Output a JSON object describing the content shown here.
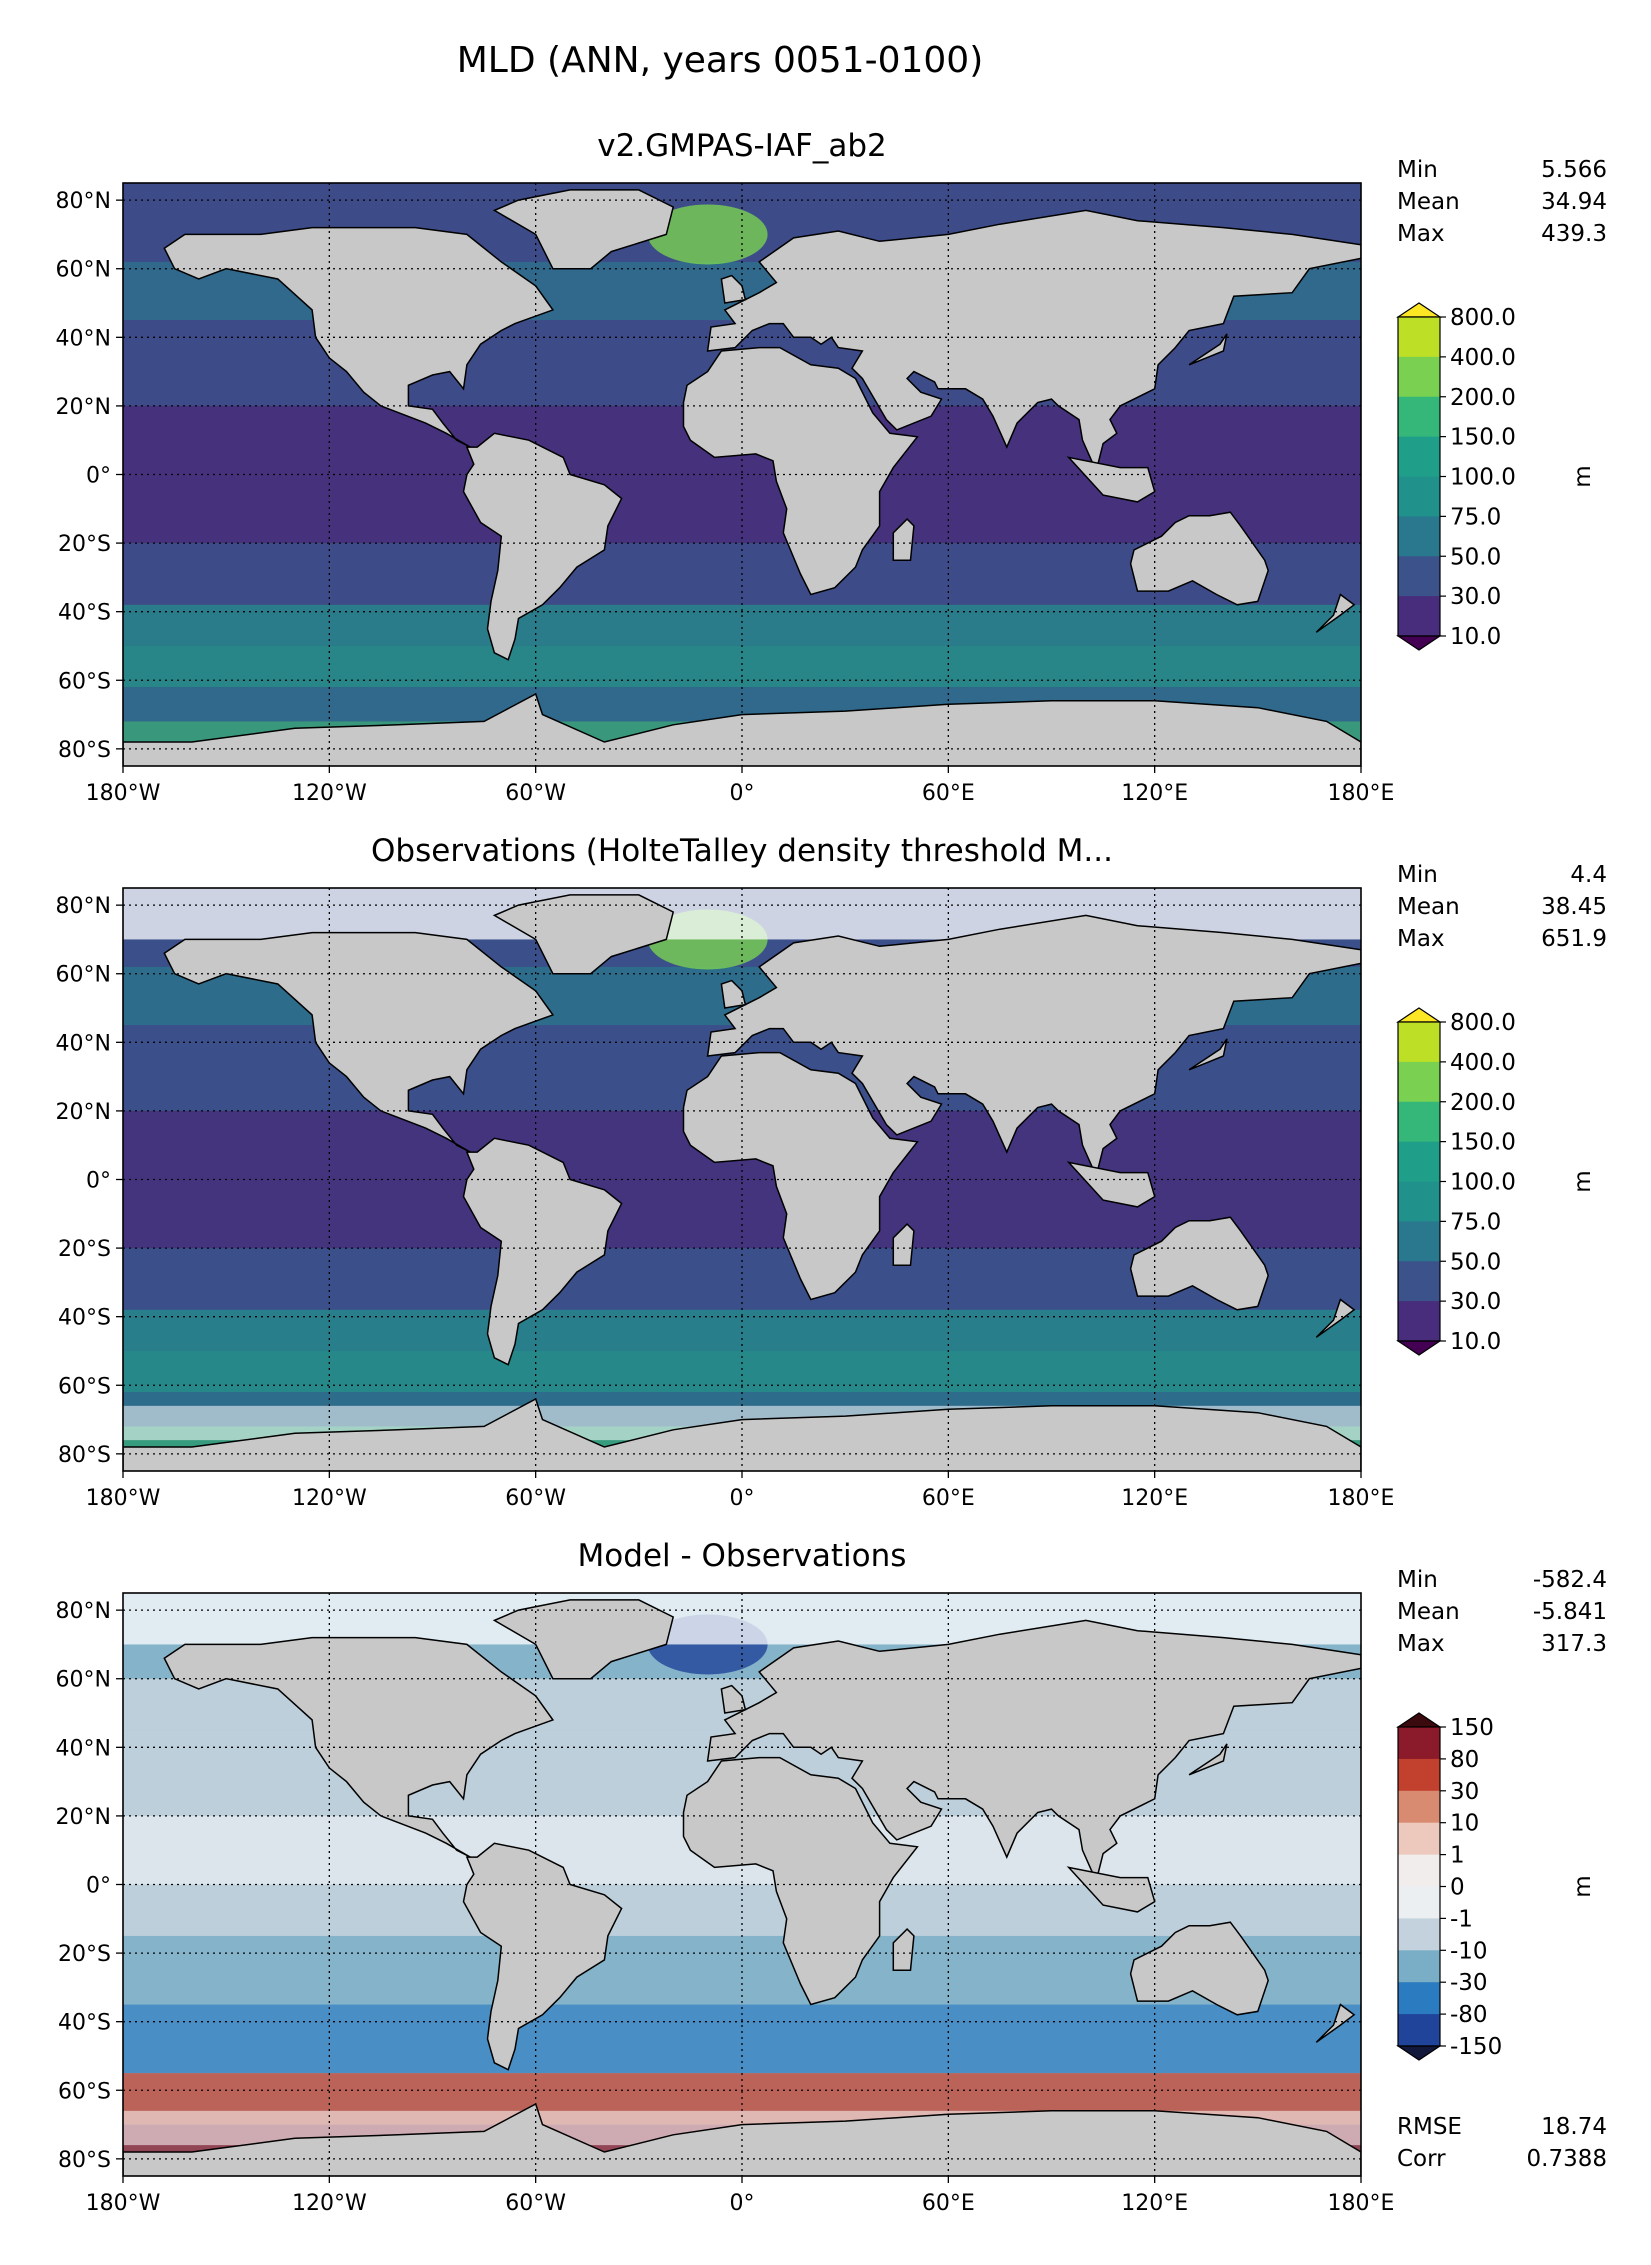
{
  "figure": {
    "title": "MLD (ANN, years 0051-0100)"
  },
  "axes": {
    "lon_ticks": [
      "180°W",
      "120°W",
      "60°W",
      "0°",
      "60°E",
      "120°E",
      "180°E"
    ],
    "lat_ticks": [
      "80°N",
      "60°N",
      "40°N",
      "20°N",
      "0°",
      "20°S",
      "40°S",
      "60°S",
      "80°S"
    ]
  },
  "panels": [
    {
      "title": "v2.GMPAS-IAF_ab2",
      "stats": [
        {
          "label": "Min",
          "value": "5.566"
        },
        {
          "label": "Mean",
          "value": "34.94"
        },
        {
          "label": "Max",
          "value": "439.3"
        }
      ],
      "extra_stats": [],
      "colorbar": {
        "unit": "m",
        "ticks": [
          "800.0",
          "400.0",
          "200.0",
          "150.0",
          "100.0",
          "75.0",
          "50.0",
          "30.0",
          "10.0"
        ],
        "colors": [
          "#fde725",
          "#bddf26",
          "#7ad151",
          "#35b779",
          "#1f9e89",
          "#21918c",
          "#2a788e",
          "#3b528b",
          "#472d7b",
          "#440154"
        ],
        "ocean_color": "#433e85"
      }
    },
    {
      "title": "Observations (HolteTalley density threshold M...",
      "stats": [
        {
          "label": "Min",
          "value": "4.4"
        },
        {
          "label": "Mean",
          "value": "38.45"
        },
        {
          "label": "Max",
          "value": "651.9"
        }
      ],
      "extra_stats": [],
      "colorbar": {
        "unit": "m",
        "ticks": [
          "800.0",
          "400.0",
          "200.0",
          "150.0",
          "100.0",
          "75.0",
          "50.0",
          "30.0",
          "10.0"
        ],
        "colors": [
          "#fde725",
          "#bddf26",
          "#7ad151",
          "#35b779",
          "#1f9e89",
          "#21918c",
          "#2a788e",
          "#3b528b",
          "#472d7b",
          "#440154"
        ],
        "ocean_color": "#3f4889"
      }
    },
    {
      "title": "Model - Observations",
      "stats": [
        {
          "label": "Min",
          "value": "-582.4"
        },
        {
          "label": "Mean",
          "value": "-5.841"
        },
        {
          "label": "Max",
          "value": "317.3"
        }
      ],
      "extra_stats": [
        {
          "label": "RMSE",
          "value": "18.74"
        },
        {
          "label": "Corr",
          "value": "0.7388"
        }
      ],
      "colorbar": {
        "unit": "m",
        "ticks": [
          "150",
          "80",
          "30",
          "10",
          "1",
          "0",
          "-1",
          "-10",
          "-30",
          "-80",
          "-150"
        ],
        "colors": [
          "#3b0a0e",
          "#8b1a2a",
          "#c2412e",
          "#d98b72",
          "#ecc8bd",
          "#f2eded",
          "#eceff2",
          "#c3d2dc",
          "#79aec6",
          "#2a7bbf",
          "#20449a",
          "#12193b"
        ],
        "ocean_color": "#a9c8d8"
      }
    }
  ],
  "colors": {
    "land": "#c8c8c8",
    "missing": "#ffffff"
  }
}
